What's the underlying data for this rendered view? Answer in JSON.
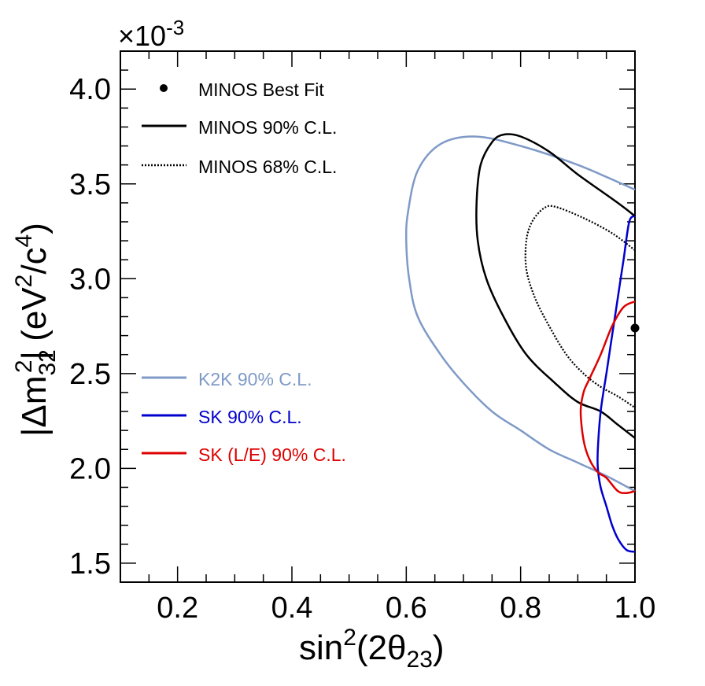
{
  "chart_data": {
    "type": "line",
    "xlabel": {
      "base": "sin",
      "sup": "2",
      "paren_open": "(2θ",
      "sub": "23",
      "paren_close": ")"
    },
    "ylabel": {
      "pre": "|Δm",
      "sub": "32",
      "sup": "2",
      "mid": "| (eV",
      "sup2": "2",
      "slash": "/c",
      "sup4": "4",
      "post": ")"
    },
    "exponent": {
      "times": "×10",
      "power": "-3"
    },
    "xlim": [
      0.1,
      1.0
    ],
    "ylim": [
      1.4,
      4.2
    ],
    "x_ticks": [
      0.2,
      0.4,
      0.6,
      0.8,
      1.0
    ],
    "x_tick_labels": [
      "0.2",
      "0.4",
      "0.6",
      "0.8",
      "1.0"
    ],
    "y_ticks": [
      1.5,
      2.0,
      2.5,
      3.0,
      3.5,
      4.0
    ],
    "y_tick_labels": [
      "1.5",
      "2.0",
      "2.5",
      "3.0",
      "3.5",
      "4.0"
    ],
    "grid": false,
    "legend_top": [
      {
        "label": "MINOS Best Fit",
        "kind": "marker",
        "color": "#000000"
      },
      {
        "label": "MINOS 90% C.L.",
        "kind": "solid",
        "color": "#000000"
      },
      {
        "label": "MINOS 68% C.L.",
        "kind": "dotted",
        "color": "#000000"
      }
    ],
    "legend_bottom": [
      {
        "label": "K2K 90% C.L.",
        "kind": "solid",
        "color": "#7f9ac7"
      },
      {
        "label": "SK 90% C.L.",
        "kind": "solid",
        "color": "#0000cc"
      },
      {
        "label": "SK (L/E) 90% C.L.",
        "kind": "solid",
        "color": "#dd0000"
      }
    ],
    "best_fit": {
      "x": 1.0,
      "y": 2.74
    },
    "series": [
      {
        "id": "k2k",
        "color": "#7f9ac7",
        "style": "solid",
        "points": [
          [
            1.0,
            3.47
          ],
          [
            0.9,
            3.6
          ],
          [
            0.8,
            3.7
          ],
          [
            0.72,
            3.75
          ],
          [
            0.66,
            3.71
          ],
          [
            0.62,
            3.57
          ],
          [
            0.603,
            3.35
          ],
          [
            0.6,
            3.2
          ],
          [
            0.605,
            3.0
          ],
          [
            0.62,
            2.8
          ],
          [
            0.66,
            2.6
          ],
          [
            0.7,
            2.45
          ],
          [
            0.75,
            2.3
          ],
          [
            0.8,
            2.2
          ],
          [
            0.85,
            2.1
          ],
          [
            0.9,
            2.03
          ],
          [
            0.95,
            1.96
          ],
          [
            1.0,
            1.88
          ]
        ]
      },
      {
        "id": "minos90",
        "color": "#000000",
        "style": "solid",
        "points": [
          [
            1.0,
            3.33
          ],
          [
            0.97,
            3.4
          ],
          [
            0.9,
            3.55
          ],
          [
            0.85,
            3.67
          ],
          [
            0.8,
            3.75
          ],
          [
            0.77,
            3.76
          ],
          [
            0.75,
            3.72
          ],
          [
            0.73,
            3.6
          ],
          [
            0.723,
            3.4
          ],
          [
            0.725,
            3.2
          ],
          [
            0.74,
            3.0
          ],
          [
            0.77,
            2.8
          ],
          [
            0.81,
            2.6
          ],
          [
            0.86,
            2.45
          ],
          [
            0.9,
            2.35
          ],
          [
            0.94,
            2.3
          ],
          [
            0.97,
            2.23
          ],
          [
            1.0,
            2.16
          ]
        ]
      },
      {
        "id": "minos68",
        "color": "#000000",
        "style": "dotted",
        "points": [
          [
            1.0,
            3.15
          ],
          [
            0.96,
            3.24
          ],
          [
            0.91,
            3.32
          ],
          [
            0.86,
            3.38
          ],
          [
            0.84,
            3.37
          ],
          [
            0.82,
            3.3
          ],
          [
            0.81,
            3.2
          ],
          [
            0.81,
            3.05
          ],
          [
            0.825,
            2.9
          ],
          [
            0.85,
            2.75
          ],
          [
            0.88,
            2.6
          ],
          [
            0.91,
            2.5
          ],
          [
            0.94,
            2.43
          ],
          [
            0.97,
            2.38
          ],
          [
            1.0,
            2.32
          ]
        ]
      },
      {
        "id": "sk",
        "color": "#0000cc",
        "style": "solid",
        "points": [
          [
            1.0,
            3.33
          ],
          [
            0.99,
            3.3
          ],
          [
            0.98,
            3.1
          ],
          [
            0.97,
            2.9
          ],
          [
            0.96,
            2.7
          ],
          [
            0.95,
            2.5
          ],
          [
            0.94,
            2.3
          ],
          [
            0.935,
            2.1
          ],
          [
            0.935,
            2.0
          ],
          [
            0.94,
            1.9
          ],
          [
            0.95,
            1.8
          ],
          [
            0.96,
            1.7
          ],
          [
            0.97,
            1.63
          ],
          [
            0.985,
            1.57
          ],
          [
            1.0,
            1.56
          ]
        ]
      },
      {
        "id": "sk_le",
        "color": "#dd0000",
        "style": "solid",
        "points": [
          [
            1.0,
            2.88
          ],
          [
            0.98,
            2.85
          ],
          [
            0.96,
            2.75
          ],
          [
            0.94,
            2.6
          ],
          [
            0.92,
            2.47
          ],
          [
            0.91,
            2.4
          ],
          [
            0.905,
            2.3
          ],
          [
            0.91,
            2.15
          ],
          [
            0.92,
            2.05
          ],
          [
            0.935,
            1.98
          ],
          [
            0.95,
            1.95
          ],
          [
            0.97,
            1.88
          ],
          [
            0.985,
            1.87
          ],
          [
            1.0,
            1.88
          ]
        ]
      }
    ]
  }
}
